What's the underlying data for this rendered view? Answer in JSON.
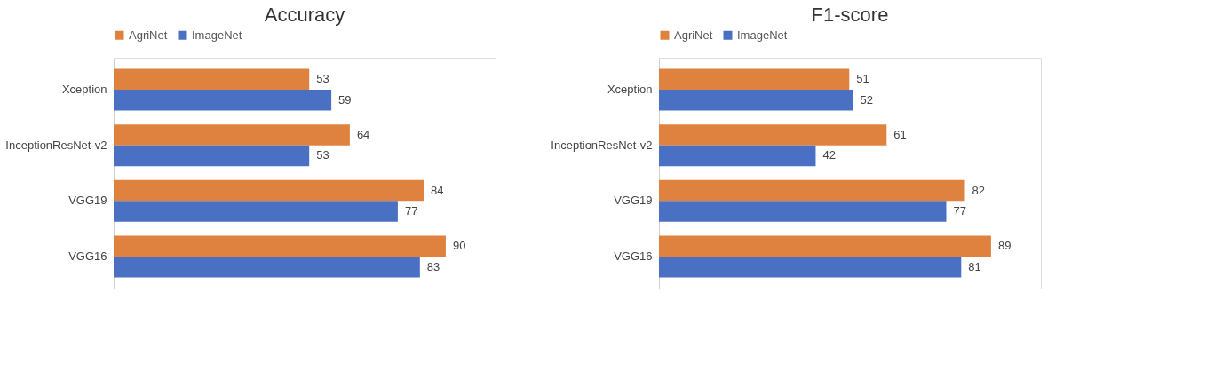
{
  "chart_data": [
    {
      "type": "bar",
      "orientation": "horizontal",
      "title": "Accuracy",
      "categories": [
        "Xception",
        "InceptionResNet-v2",
        "VGG19",
        "VGG16"
      ],
      "legend": "top",
      "data_labels": true,
      "series": [
        {
          "name": "AgriNet",
          "color": "#e0823f",
          "values": [
            53,
            64,
            84,
            90
          ]
        },
        {
          "name": "ImageNet",
          "color": "#4a70c3",
          "values": [
            59,
            53,
            77,
            83
          ]
        }
      ]
    },
    {
      "type": "bar",
      "orientation": "horizontal",
      "title": "F1-score",
      "categories": [
        "Xception",
        "InceptionResNet-v2",
        "VGG19",
        "VGG16"
      ],
      "legend": "top",
      "data_labels": true,
      "series": [
        {
          "name": "AgriNet",
          "color": "#e0823f",
          "values": [
            51,
            61,
            82,
            89
          ]
        },
        {
          "name": "ImageNet",
          "color": "#4a70c3",
          "values": [
            52,
            42,
            77,
            81
          ]
        }
      ]
    }
  ]
}
